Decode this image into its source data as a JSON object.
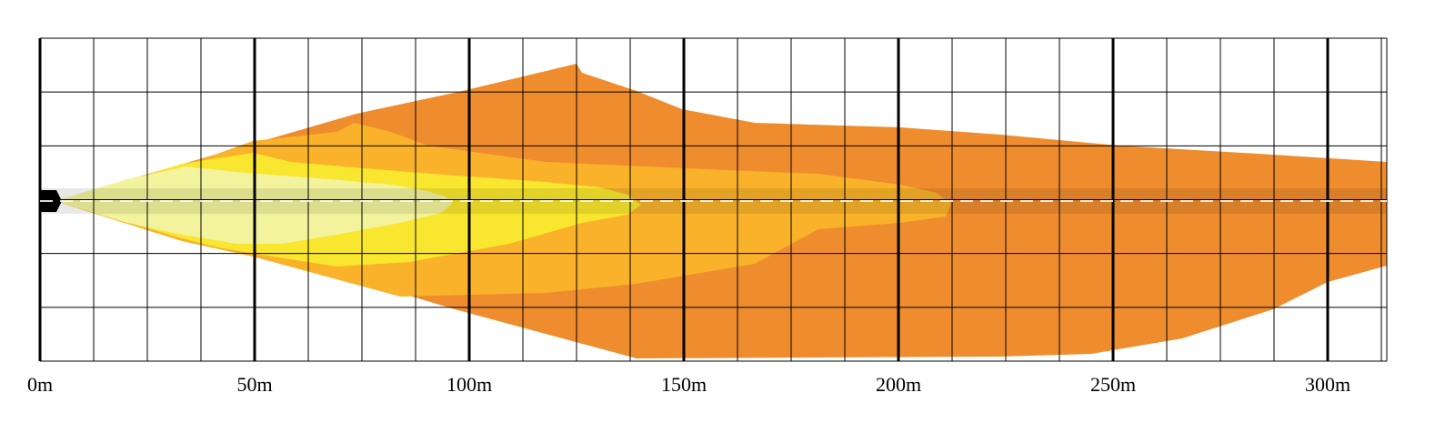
{
  "chart_data": {
    "type": "area",
    "title": "",
    "xlabel": "",
    "ylabel": "",
    "x_unit": "m",
    "xlim": [
      0,
      312
    ],
    "x_ticks": [
      {
        "value": 0,
        "label": "0m"
      },
      {
        "value": 50,
        "label": "50m"
      },
      {
        "value": 100,
        "label": "100m"
      },
      {
        "value": 150,
        "label": "150m"
      },
      {
        "value": 200,
        "label": "200m"
      },
      {
        "value": 250,
        "label": "250m"
      },
      {
        "value": 300,
        "label": "300m"
      }
    ],
    "grid": true,
    "major_gridlines_every_m": 50,
    "minor_gridlines_every_m": 12.5,
    "legend": "none",
    "zones": [
      {
        "color": "#ee8c2e",
        "reach_m": 312
      },
      {
        "color": "#f9b22a",
        "reach_m": 212
      },
      {
        "color": "#f9e62e",
        "reach_m": 140
      },
      {
        "color": "#f3f39d",
        "reach_m": 96
      }
    ],
    "beam_axis_color": "#000000",
    "centerline_color": "#ffffff"
  }
}
